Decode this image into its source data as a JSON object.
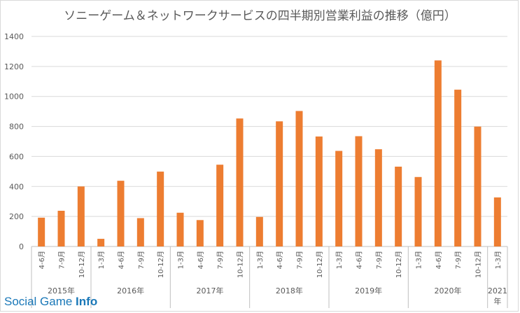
{
  "chart_data": {
    "type": "bar",
    "title": "ソニーゲーム＆ネットワークサービスの四半期別営業利益の推移（億円）",
    "xlabel": "",
    "ylabel": "",
    "ylim": [
      0,
      1400
    ],
    "yticks": [
      0,
      200,
      400,
      600,
      800,
      1000,
      1200,
      1400
    ],
    "grid": true,
    "legend": "none",
    "bar_color": "#ed7d31",
    "categories": [
      "4-6月",
      "7-9月",
      "10-12月",
      "1-3月",
      "4-6月",
      "7-9月",
      "10-12月",
      "1-3月",
      "4-6月",
      "7-9月",
      "10-12月",
      "1-3月",
      "4-6月",
      "7-9月",
      "10-12月",
      "1-3月",
      "4-6月",
      "7-9月",
      "10-12月",
      "1-3月",
      "4-6月",
      "7-9月",
      "10-12月",
      "1-3月"
    ],
    "values": [
      192,
      238,
      400,
      51,
      438,
      189,
      499,
      225,
      176,
      545,
      853,
      197,
      834,
      903,
      733,
      637,
      735,
      648,
      532,
      463,
      1240,
      1045,
      799,
      327
    ],
    "year_groups": [
      {
        "label": "2015年",
        "count": 3
      },
      {
        "label": "2016年",
        "count": 4
      },
      {
        "label": "2017年",
        "count": 4
      },
      {
        "label": "2018年",
        "count": 4
      },
      {
        "label": "2019年",
        "count": 4
      },
      {
        "label": "2020年",
        "count": 4
      },
      {
        "label": "2021年",
        "count": 1
      }
    ]
  },
  "watermark": {
    "part1": "Social Game ",
    "part2": "Info"
  }
}
